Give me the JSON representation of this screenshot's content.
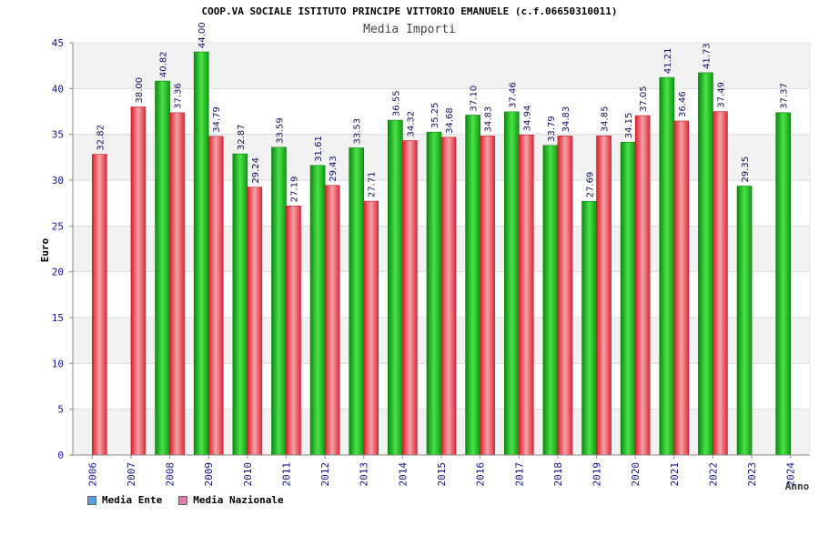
{
  "header": {
    "title": "COOP.VA SOCIALE ISTITUTO PRINCIPE VITTORIO EMANUELE (c.f.06650310011)",
    "subtitle": "Media Importi"
  },
  "legend": [
    {
      "label": "Media Ente",
      "color": "#5aa0e6"
    },
    {
      "label": "Media Nazionale",
      "color": "#e07aa8"
    }
  ],
  "chart_data": {
    "type": "bar",
    "title": "Media Importi",
    "xlabel": "Anno",
    "ylabel": "Euro",
    "ylim": [
      0,
      45
    ],
    "yticks": [
      0,
      5,
      10,
      15,
      20,
      25,
      30,
      35,
      40,
      45
    ],
    "grid": true,
    "categories": [
      "2006",
      "2007",
      "2008",
      "2009",
      "2010",
      "2011",
      "2012",
      "2013",
      "2014",
      "2015",
      "2016",
      "2017",
      "2018",
      "2019",
      "2020",
      "2021",
      "2022",
      "2023",
      "2024"
    ],
    "series": [
      {
        "name": "Media Ente",
        "color": "#1fb51f",
        "values": [
          null,
          null,
          40.82,
          44.0,
          32.87,
          33.59,
          31.61,
          33.53,
          36.55,
          35.25,
          37.1,
          37.46,
          33.79,
          27.69,
          34.15,
          41.21,
          41.73,
          29.35,
          37.37
        ],
        "labels": [
          null,
          null,
          "40.82",
          "44.00",
          "32.87",
          "33.59",
          "31.61",
          "33.53",
          "36.55",
          "35.25",
          "37.10",
          "37.46",
          "33.79",
          "27.69",
          "34.15",
          "41.21",
          "41.73",
          "29.35",
          "37.37"
        ]
      },
      {
        "name": "Media Nazionale",
        "color": "#e8333f",
        "values": [
          32.82,
          38.0,
          37.36,
          34.79,
          29.24,
          27.19,
          29.43,
          27.71,
          34.32,
          34.68,
          34.83,
          34.94,
          34.83,
          34.85,
          37.05,
          36.46,
          37.49,
          null,
          null
        ],
        "labels": [
          "32.82",
          "38.00",
          "37.36",
          "34.79",
          "29.24",
          "27.19",
          "29.43",
          "27.71",
          "34.32",
          "34.68",
          "34.83",
          "34.94",
          "34.83",
          "34.85",
          "37.05",
          "36.46",
          "37.49",
          null,
          null
        ]
      }
    ]
  }
}
